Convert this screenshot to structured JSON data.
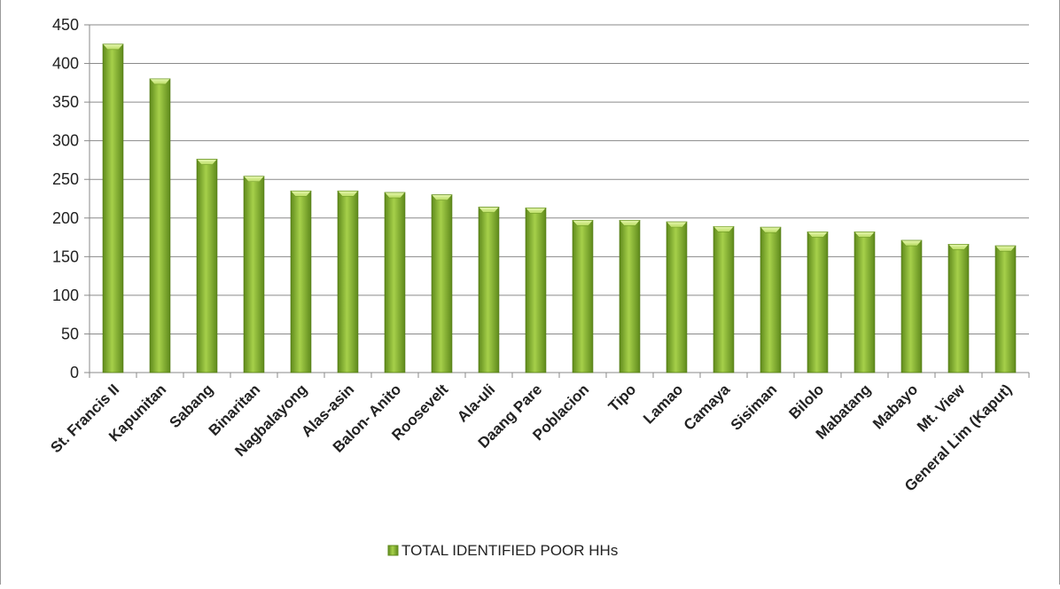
{
  "chart_data": {
    "type": "bar",
    "title": "",
    "xlabel": "",
    "ylabel": "",
    "ylim": [
      0,
      450
    ],
    "yticks": [
      0,
      50,
      100,
      150,
      200,
      250,
      300,
      350,
      400,
      450
    ],
    "grid": true,
    "legend": "bottom",
    "categories": [
      "St. Francis II",
      "Kapunitan",
      "Sabang",
      "Binaritan",
      "Nagbalayong",
      "Alas-asin",
      "Balon- Anito",
      "Roosevelt",
      "Ala-uli",
      "Daang Pare",
      "Poblacion",
      "Tipo",
      "Lamao",
      "Camaya",
      "Sisiman",
      "Bilolo",
      "Mabatang",
      "Mabayo",
      "Mt. View",
      "General Lim (Kaput)"
    ],
    "series": [
      {
        "name": "TOTAL IDENTIFIED POOR HHs",
        "values": [
          425,
          380,
          276,
          254,
          235,
          235,
          233,
          230,
          214,
          213,
          197,
          197,
          195,
          189,
          188,
          182,
          182,
          171,
          166,
          164
        ],
        "color": "#8cb832"
      }
    ]
  }
}
